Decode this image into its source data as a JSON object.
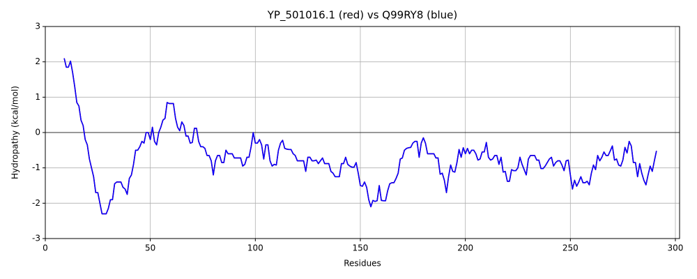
{
  "chart_data": {
    "type": "line",
    "title": "YP_501016.1 (red) vs Q99RY8 (blue)",
    "x_label": "Residues",
    "y_label": "Hydropathy (kcal/mol)",
    "xlim": [
      0,
      302
    ],
    "ylim": [
      -3,
      3
    ],
    "xticks": [
      0,
      50,
      100,
      150,
      200,
      250,
      300
    ],
    "yticks": [
      -3,
      -2,
      -1,
      0,
      1,
      2,
      3
    ],
    "grid": true,
    "hline": 0,
    "x": [
      9,
      10,
      11,
      12,
      13,
      14,
      15,
      16,
      17,
      18,
      19,
      20,
      21,
      22,
      23,
      24,
      25,
      26,
      27,
      28,
      29,
      30,
      31,
      32,
      33,
      34,
      35,
      36,
      37,
      38,
      39,
      40,
      41,
      42,
      43,
      44,
      45,
      46,
      47,
      48,
      49,
      50,
      51,
      52,
      53,
      54,
      55,
      56,
      57,
      58,
      59,
      60,
      61,
      62,
      63,
      64,
      65,
      66,
      67,
      68,
      69,
      70,
      71,
      72,
      73,
      74,
      75,
      76,
      77,
      78,
      79,
      80,
      81,
      82,
      83,
      84,
      85,
      86,
      87,
      88,
      89,
      90,
      91,
      92,
      93,
      94,
      95,
      96,
      97,
      98,
      99,
      100,
      101,
      102,
      103,
      104,
      105,
      106,
      107,
      108,
      109,
      110,
      111,
      112,
      113,
      114,
      115,
      116,
      117,
      118,
      119,
      120,
      121,
      122,
      123,
      124,
      125,
      126,
      127,
      128,
      129,
      130,
      131,
      132,
      133,
      134,
      135,
      136,
      137,
      138,
      139,
      140,
      141,
      142,
      143,
      144,
      145,
      146,
      147,
      148,
      149,
      150,
      151,
      152,
      153,
      154,
      155,
      156,
      157,
      158,
      159,
      160,
      161,
      162,
      163,
      164,
      165,
      166,
      167,
      168,
      169,
      170,
      171,
      172,
      173,
      174,
      175,
      176,
      177,
      178,
      179,
      180,
      181,
      182,
      183,
      184,
      185,
      186,
      187,
      188,
      189,
      190,
      191,
      192,
      193,
      194,
      195,
      196,
      197,
      198,
      199,
      200,
      201,
      202,
      203,
      204,
      205,
      206,
      207,
      208,
      209,
      210,
      211,
      212,
      213,
      214,
      215,
      216,
      217,
      218,
      219,
      220,
      221,
      222,
      223,
      224,
      225,
      226,
      227,
      228,
      229,
      230,
      231,
      232,
      233,
      234,
      235,
      236,
      237,
      238,
      239,
      240,
      241,
      242,
      243,
      244,
      245,
      246,
      247,
      248,
      249,
      250,
      251,
      252,
      253,
      254,
      255,
      256,
      257,
      258,
      259,
      260,
      261,
      262,
      263,
      264,
      265,
      266,
      267,
      268,
      269,
      270,
      271,
      272,
      273,
      274,
      275,
      276,
      277,
      278,
      279,
      280,
      281,
      282,
      283,
      284,
      285,
      286,
      287,
      288,
      289,
      290,
      291
    ],
    "series": [
      {
        "color": "#ff0000",
        "values": [
          2.1,
          1.85,
          1.85,
          2.02,
          1.7,
          1.3,
          0.85,
          0.75,
          0.35,
          0.2,
          -0.2,
          -0.35,
          -0.75,
          -1.0,
          -1.25,
          -1.7,
          -1.7,
          -2.0,
          -2.3,
          -2.3,
          -2.3,
          -2.15,
          -1.9,
          -1.9,
          -1.45,
          -1.4,
          -1.4,
          -1.4,
          -1.55,
          -1.6,
          -1.75,
          -1.3,
          -1.2,
          -0.9,
          -0.5,
          -0.5,
          -0.4,
          -0.25,
          -0.3,
          0.0,
          0.0,
          -0.2,
          0.15,
          -0.25,
          -0.35,
          0.0,
          0.15,
          0.35,
          0.4,
          0.85,
          0.82,
          0.82,
          0.82,
          0.4,
          0.15,
          0.05,
          0.3,
          0.2,
          -0.1,
          -0.1,
          -0.3,
          -0.28,
          0.12,
          0.12,
          -0.25,
          -0.4,
          -0.4,
          -0.45,
          -0.65,
          -0.65,
          -0.8,
          -1.2,
          -0.8,
          -0.65,
          -0.65,
          -0.85,
          -0.85,
          -0.5,
          -0.6,
          -0.6,
          -0.6,
          -0.72,
          -0.72,
          -0.72,
          -0.72,
          -0.95,
          -0.9,
          -0.7,
          -0.7,
          -0.4,
          0.0,
          -0.3,
          -0.3,
          -0.2,
          -0.35,
          -0.75,
          -0.35,
          -0.35,
          -0.8,
          -0.95,
          -0.9,
          -0.92,
          -0.5,
          -0.3,
          -0.22,
          -0.45,
          -0.47,
          -0.48,
          -0.48,
          -0.6,
          -0.65,
          -0.8,
          -0.8,
          -0.8,
          -0.8,
          -1.1,
          -0.7,
          -0.7,
          -0.8,
          -0.8,
          -0.78,
          -0.88,
          -0.8,
          -0.72,
          -0.88,
          -0.88,
          -0.88,
          -1.1,
          -1.15,
          -1.25,
          -1.25,
          -1.25,
          -0.88,
          -0.88,
          -0.7,
          -0.9,
          -0.95,
          -0.98,
          -0.98,
          -0.85,
          -1.15,
          -1.5,
          -1.52,
          -1.4,
          -1.55,
          -1.9,
          -2.1,
          -1.92,
          -1.95,
          -1.93,
          -1.5,
          -1.92,
          -1.93,
          -1.93,
          -1.65,
          -1.45,
          -1.42,
          -1.42,
          -1.3,
          -1.15,
          -0.75,
          -0.72,
          -0.5,
          -0.45,
          -0.43,
          -0.42,
          -0.3,
          -0.25,
          -0.25,
          -0.7,
          -0.3,
          -0.15,
          -0.3,
          -0.6,
          -0.6,
          -0.6,
          -0.6,
          -0.72,
          -0.72,
          -1.18,
          -1.15,
          -1.35,
          -1.7,
          -1.25,
          -0.92,
          -1.1,
          -1.12,
          -0.85,
          -0.48,
          -0.7,
          -0.43,
          -0.6,
          -0.45,
          -0.6,
          -0.5,
          -0.5,
          -0.6,
          -0.78,
          -0.75,
          -0.55,
          -0.55,
          -0.28,
          -0.7,
          -0.78,
          -0.75,
          -0.65,
          -0.65,
          -0.9,
          -0.7,
          -1.12,
          -1.1,
          -1.38,
          -1.38,
          -1.05,
          -1.08,
          -1.08,
          -1.0,
          -0.7,
          -0.9,
          -1.05,
          -1.2,
          -0.75,
          -0.65,
          -0.65,
          -0.65,
          -0.78,
          -0.78,
          -1.02,
          -1.02,
          -0.95,
          -0.85,
          -0.75,
          -0.7,
          -0.95,
          -0.85,
          -0.8,
          -0.8,
          -0.92,
          -1.08,
          -0.8,
          -0.78,
          -1.2,
          -1.6,
          -1.35,
          -1.52,
          -1.4,
          -1.25,
          -1.42,
          -1.42,
          -1.38,
          -1.48,
          -1.15,
          -0.92,
          -1.05,
          -0.65,
          -0.8,
          -0.7,
          -0.55,
          -0.65,
          -0.65,
          -0.52,
          -0.38,
          -0.78,
          -0.75,
          -0.92,
          -0.95,
          -0.78,
          -0.42,
          -0.58,
          -0.25,
          -0.38,
          -0.85,
          -0.85,
          -1.25,
          -0.88,
          -1.15,
          -1.35,
          -1.48,
          -1.2,
          -0.95,
          -1.1,
          -0.8,
          -0.52
        ]
      },
      {
        "color": "#0000ff",
        "values": [
          2.1,
          1.85,
          1.85,
          2.02,
          1.7,
          1.3,
          0.85,
          0.75,
          0.35,
          0.2,
          -0.2,
          -0.35,
          -0.75,
          -1.0,
          -1.25,
          -1.7,
          -1.7,
          -2.0,
          -2.3,
          -2.3,
          -2.3,
          -2.15,
          -1.9,
          -1.9,
          -1.45,
          -1.4,
          -1.4,
          -1.4,
          -1.55,
          -1.6,
          -1.75,
          -1.3,
          -1.2,
          -0.9,
          -0.5,
          -0.5,
          -0.4,
          -0.25,
          -0.3,
          0.0,
          0.0,
          -0.2,
          0.15,
          -0.25,
          -0.35,
          0.0,
          0.15,
          0.35,
          0.4,
          0.85,
          0.82,
          0.82,
          0.82,
          0.4,
          0.15,
          0.05,
          0.3,
          0.2,
          -0.1,
          -0.1,
          -0.3,
          -0.28,
          0.12,
          0.12,
          -0.25,
          -0.4,
          -0.4,
          -0.45,
          -0.65,
          -0.65,
          -0.8,
          -1.2,
          -0.8,
          -0.65,
          -0.65,
          -0.85,
          -0.85,
          -0.5,
          -0.6,
          -0.6,
          -0.6,
          -0.72,
          -0.72,
          -0.72,
          -0.72,
          -0.95,
          -0.9,
          -0.7,
          -0.7,
          -0.4,
          0.0,
          -0.3,
          -0.3,
          -0.2,
          -0.35,
          -0.75,
          -0.35,
          -0.35,
          -0.8,
          -0.95,
          -0.9,
          -0.92,
          -0.5,
          -0.3,
          -0.22,
          -0.45,
          -0.47,
          -0.48,
          -0.48,
          -0.6,
          -0.65,
          -0.8,
          -0.8,
          -0.8,
          -0.8,
          -1.1,
          -0.7,
          -0.7,
          -0.8,
          -0.8,
          -0.78,
          -0.88,
          -0.8,
          -0.72,
          -0.88,
          -0.88,
          -0.88,
          -1.1,
          -1.15,
          -1.25,
          -1.25,
          -1.25,
          -0.88,
          -0.88,
          -0.7,
          -0.9,
          -0.95,
          -0.98,
          -0.98,
          -0.85,
          -1.15,
          -1.5,
          -1.52,
          -1.4,
          -1.55,
          -1.9,
          -2.1,
          -1.92,
          -1.95,
          -1.93,
          -1.5,
          -1.92,
          -1.93,
          -1.93,
          -1.65,
          -1.45,
          -1.42,
          -1.42,
          -1.3,
          -1.15,
          -0.75,
          -0.72,
          -0.5,
          -0.45,
          -0.43,
          -0.42,
          -0.3,
          -0.25,
          -0.25,
          -0.7,
          -0.3,
          -0.15,
          -0.3,
          -0.6,
          -0.6,
          -0.6,
          -0.6,
          -0.72,
          -0.72,
          -1.18,
          -1.15,
          -1.35,
          -1.7,
          -1.25,
          -0.92,
          -1.1,
          -1.12,
          -0.85,
          -0.48,
          -0.7,
          -0.43,
          -0.6,
          -0.45,
          -0.6,
          -0.5,
          -0.5,
          -0.6,
          -0.78,
          -0.75,
          -0.55,
          -0.55,
          -0.28,
          -0.7,
          -0.78,
          -0.75,
          -0.65,
          -0.65,
          -0.9,
          -0.7,
          -1.12,
          -1.1,
          -1.38,
          -1.38,
          -1.05,
          -1.08,
          -1.08,
          -1.0,
          -0.7,
          -0.9,
          -1.05,
          -1.2,
          -0.75,
          -0.65,
          -0.65,
          -0.65,
          -0.78,
          -0.78,
          -1.02,
          -1.02,
          -0.95,
          -0.85,
          -0.75,
          -0.7,
          -0.95,
          -0.85,
          -0.8,
          -0.8,
          -0.92,
          -1.08,
          -0.8,
          -0.78,
          -1.2,
          -1.6,
          -1.35,
          -1.52,
          -1.4,
          -1.25,
          -1.42,
          -1.42,
          -1.38,
          -1.48,
          -1.15,
          -0.92,
          -1.05,
          -0.65,
          -0.8,
          -0.7,
          -0.55,
          -0.65,
          -0.65,
          -0.52,
          -0.38,
          -0.78,
          -0.75,
          -0.92,
          -0.95,
          -0.78,
          -0.42,
          -0.58,
          -0.25,
          -0.38,
          -0.85,
          -0.85,
          -1.25,
          -0.88,
          -1.15,
          -1.35,
          -1.48,
          -1.2,
          -0.95,
          -1.1,
          -0.8,
          -0.52
        ]
      }
    ]
  }
}
